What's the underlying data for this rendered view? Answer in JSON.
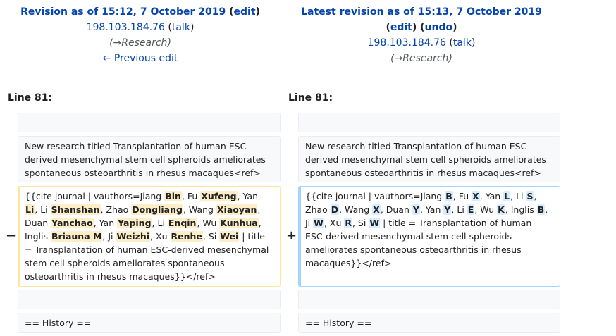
{
  "left_header": {
    "title_prefix": "Revision as of 15:12, 7 October 2019",
    "edit_label": "edit",
    "user": "198.103.184.76",
    "talk_label": "talk",
    "summary_arrow": "→",
    "summary_section": "Research",
    "prev_edit_label": "← Previous edit"
  },
  "right_header": {
    "title": "Latest revision as of 15:13, 7 October 2019",
    "edit_label": "edit",
    "undo_label": "undo",
    "user": "198.103.184.76",
    "talk_label": "talk",
    "summary_arrow": "→",
    "summary_section": "Research"
  },
  "line_label": "Line 81:",
  "context": {
    "research_text": "New research titled Transplantation of human ESC-derived mesenchymal stem cell spheroids ameliorates spontaneous osteoarthritis in rhesus macaques<ref>",
    "history_text": "== History =="
  },
  "markers": {
    "removed": "−",
    "added": "+"
  },
  "removed_line": [
    {
      "t": "{{cite journal | vauthors=Jiang ",
      "h": false
    },
    {
      "t": "Bin",
      "h": true
    },
    {
      "t": ", Fu ",
      "h": false
    },
    {
      "t": "Xufeng",
      "h": true
    },
    {
      "t": ", Yan ",
      "h": false
    },
    {
      "t": "Li",
      "h": true
    },
    {
      "t": ", Li ",
      "h": false
    },
    {
      "t": "Shanshan",
      "h": true
    },
    {
      "t": ", Zhao ",
      "h": false
    },
    {
      "t": "Dongliang",
      "h": true
    },
    {
      "t": ", Wang ",
      "h": false
    },
    {
      "t": "Xiaoyan",
      "h": true
    },
    {
      "t": ", Duan ",
      "h": false
    },
    {
      "t": "Yanchao",
      "h": true
    },
    {
      "t": ", Yan ",
      "h": false
    },
    {
      "t": "Yaping",
      "h": true
    },
    {
      "t": ", Li ",
      "h": false
    },
    {
      "t": "Enqin",
      "h": true
    },
    {
      "t": ", Wu ",
      "h": false
    },
    {
      "t": "Kunhua",
      "h": true
    },
    {
      "t": ", Inglis ",
      "h": false
    },
    {
      "t": "Briauna M",
      "h": true
    },
    {
      "t": ", Ji ",
      "h": false
    },
    {
      "t": "Weizhi",
      "h": true
    },
    {
      "t": ", Xu ",
      "h": false
    },
    {
      "t": "Renhe",
      "h": true
    },
    {
      "t": ", Si ",
      "h": false
    },
    {
      "t": "Wei",
      "h": true
    },
    {
      "t": " | title = Transplantation of human ESC-derived mesenchymal stem cell spheroids ameliorates spontaneous osteoarthritis in rhesus macaques}}</ref>",
      "h": false
    }
  ],
  "added_line": [
    {
      "t": "{{cite journal | vauthors=Jiang ",
      "h": false
    },
    {
      "t": "B",
      "h": true
    },
    {
      "t": ", Fu ",
      "h": false
    },
    {
      "t": "X",
      "h": true
    },
    {
      "t": ", Yan ",
      "h": false
    },
    {
      "t": "L",
      "h": true
    },
    {
      "t": ", Li ",
      "h": false
    },
    {
      "t": "S",
      "h": true
    },
    {
      "t": ", Zhao ",
      "h": false
    },
    {
      "t": "D",
      "h": true
    },
    {
      "t": ", Wang ",
      "h": false
    },
    {
      "t": "X",
      "h": true
    },
    {
      "t": ", Duan ",
      "h": false
    },
    {
      "t": "Y",
      "h": true
    },
    {
      "t": ", Yan ",
      "h": false
    },
    {
      "t": "Y",
      "h": true
    },
    {
      "t": ", Li ",
      "h": false
    },
    {
      "t": "E",
      "h": true
    },
    {
      "t": ", Wu ",
      "h": false
    },
    {
      "t": "K",
      "h": true
    },
    {
      "t": ", Inglis ",
      "h": false
    },
    {
      "t": "B",
      "h": true
    },
    {
      "t": ", Ji ",
      "h": false
    },
    {
      "t": "W",
      "h": true
    },
    {
      "t": ", Xu ",
      "h": false
    },
    {
      "t": "R",
      "h": true
    },
    {
      "t": ", Si ",
      "h": false
    },
    {
      "t": "W",
      "h": true
    },
    {
      "t": " | title = Transplantation of human ESC-derived mesenchymal stem cell spheroids ameliorates spontaneous osteoarthritis in rhesus macaques}}</ref>",
      "h": false
    }
  ]
}
